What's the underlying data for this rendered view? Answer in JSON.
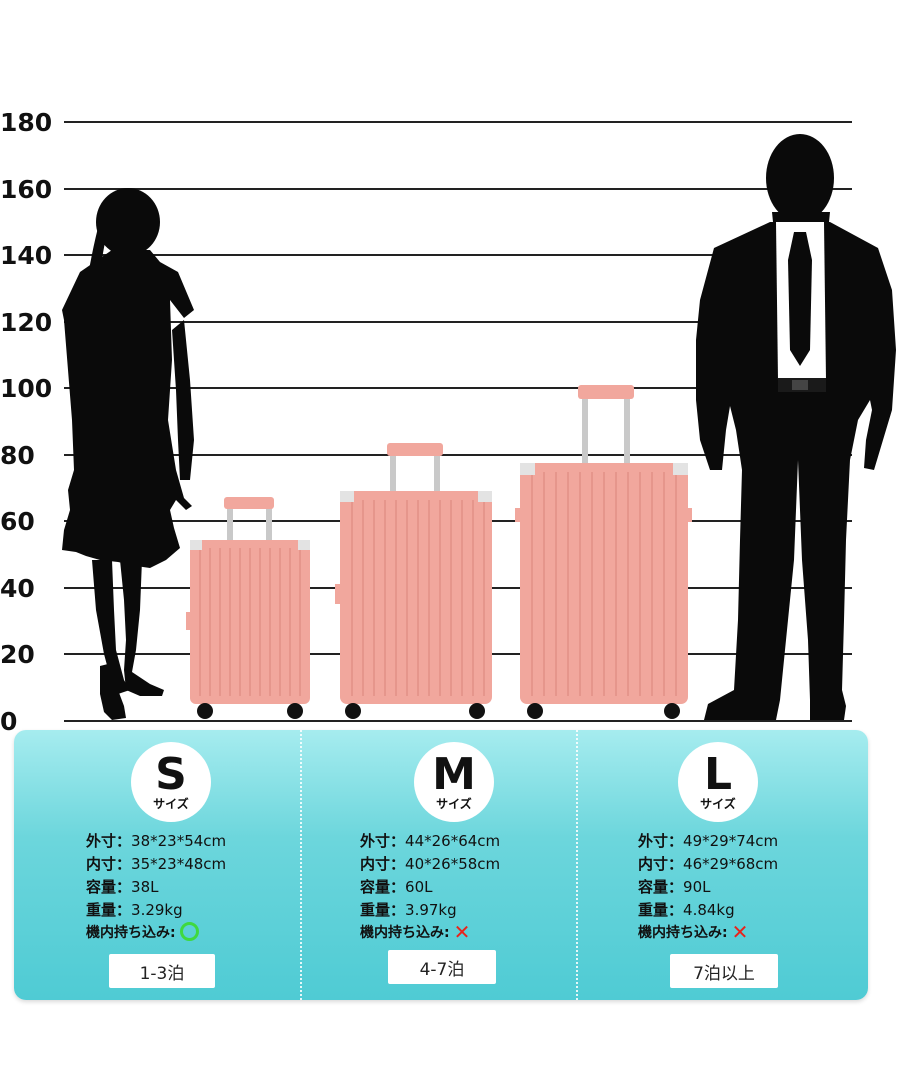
{
  "scale": {
    "ticks": [
      "0",
      "20",
      "40",
      "60",
      "80",
      "100",
      "120",
      "140",
      "160",
      "180"
    ]
  },
  "colors": {
    "suitcase": "#f1a79d",
    "suitcase_dark": "#e08f85",
    "silhouette": "#0a0a0a",
    "panel_top": "#a6ecef",
    "panel_bottom": "#4fcbd4",
    "ok_mark": "#3fd93f",
    "ng_mark": "#e8231b"
  },
  "sizes": [
    {
      "letter": "S",
      "word": "サイズ",
      "outer_label": "外寸",
      "outer": "38*23*54cm",
      "inner_label": "内寸",
      "inner": "35*23*48cm",
      "capacity_label": "容量",
      "capacity": "38L",
      "weight_label": "重量",
      "weight": "3.29kg",
      "carry_label": "機内持ち込み:",
      "carry_on": true,
      "nights": "1-3泊"
    },
    {
      "letter": "M",
      "word": "サイズ",
      "outer_label": "外寸",
      "outer": "44*26*64cm",
      "inner_label": "内寸",
      "inner": "40*26*58cm",
      "capacity_label": "容量",
      "capacity": "60L",
      "weight_label": "重量",
      "weight": "3.97kg",
      "carry_label": "機内持ち込み:",
      "carry_on": false,
      "nights": "4-7泊"
    },
    {
      "letter": "L",
      "word": "サイズ",
      "outer_label": "外寸",
      "outer": "49*29*74cm",
      "inner_label": "内寸",
      "inner": "46*29*68cm",
      "capacity_label": "容量",
      "capacity": "90L",
      "weight_label": "重量",
      "weight": "4.84kg",
      "carry_label": "機内持ち込み:",
      "carry_on": false,
      "nights": "7泊以上"
    }
  ],
  "icons": {
    "ok": "green-circle-icon",
    "ng": "red-cross-icon"
  }
}
